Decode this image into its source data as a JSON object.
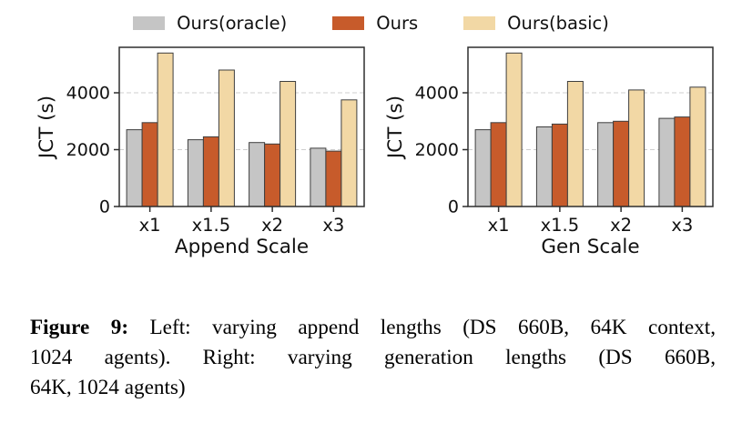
{
  "legend": {
    "items": [
      {
        "label": "Ours(oracle)",
        "color": "#c5c5c5"
      },
      {
        "label": "Ours",
        "color": "#c75b2b"
      },
      {
        "label": "Ours(basic)",
        "color": "#f2d8a5"
      }
    ]
  },
  "style": {
    "bar_edge_color": "#3f3f3f",
    "spine_color": "#2e2e2e",
    "grid_color": "#cfcfcf",
    "text_color": "#111111"
  },
  "chart_data": [
    {
      "type": "bar",
      "title": "",
      "xlabel": "Append Scale",
      "ylabel": "JCT (s)",
      "categories": [
        "x1",
        "x1.5",
        "x2",
        "x3"
      ],
      "series": [
        {
          "name": "Ours(oracle)",
          "color": "#c5c5c5",
          "values": [
            2700,
            2350,
            2250,
            2050
          ]
        },
        {
          "name": "Ours",
          "color": "#c75b2b",
          "values": [
            2950,
            2450,
            2200,
            1950
          ]
        },
        {
          "name": "Ours(basic)",
          "color": "#f2d8a5",
          "values": [
            5400,
            4800,
            4400,
            3750
          ]
        }
      ],
      "ylim": [
        0,
        5600
      ],
      "yticks": [
        0,
        2000,
        4000
      ],
      "grid": "horizontal-dashed",
      "legend_position": "above-figure"
    },
    {
      "type": "bar",
      "title": "",
      "xlabel": "Gen Scale",
      "ylabel": "JCT (s)",
      "categories": [
        "x1",
        "x1.5",
        "x2",
        "x3"
      ],
      "series": [
        {
          "name": "Ours(oracle)",
          "color": "#c5c5c5",
          "values": [
            2700,
            2800,
            2950,
            3100
          ]
        },
        {
          "name": "Ours",
          "color": "#c75b2b",
          "values": [
            2950,
            2900,
            3000,
            3150
          ]
        },
        {
          "name": "Ours(basic)",
          "color": "#f2d8a5",
          "values": [
            5400,
            4400,
            4100,
            4200
          ]
        }
      ],
      "ylim": [
        0,
        5600
      ],
      "yticks": [
        0,
        2000,
        4000
      ],
      "grid": "horizontal-dashed",
      "legend_position": "above-figure"
    }
  ],
  "caption": {
    "bold_label": "Figure 9:",
    "line1": " Left: varying append lengths (DS 660B, 64K context,",
    "line2": "1024 agents). Right: varying generation lengths (DS 660B,",
    "line3": "64K, 1024 agents)"
  }
}
